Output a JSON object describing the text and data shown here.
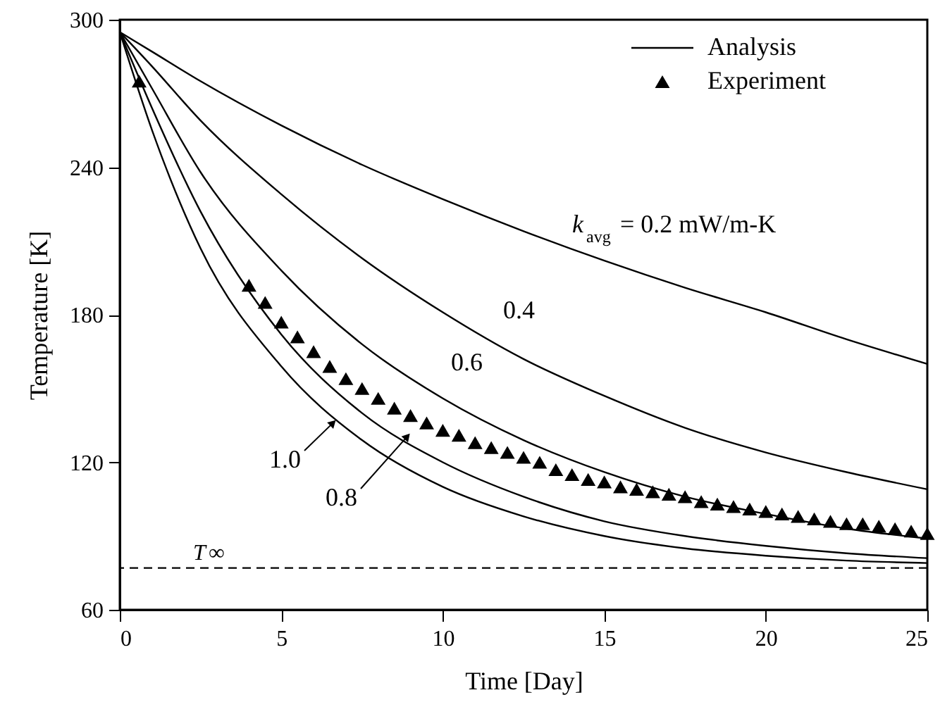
{
  "chart_data": {
    "type": "line",
    "xlabel": "Time [Day]",
    "ylabel": "Temperature [K]",
    "xlim": [
      0,
      25
    ],
    "ylim": [
      60,
      300
    ],
    "xticks": [
      0,
      5,
      10,
      15,
      20,
      25
    ],
    "yticks": [
      60,
      120,
      180,
      240,
      300
    ],
    "grid": false,
    "legend": "top right",
    "line_style": "solid",
    "marker": "none",
    "series": [
      {
        "name": "Analysis",
        "color": "#000000",
        "x": [
          0,
          1,
          2.5,
          5,
          7.5,
          10,
          12.5,
          15,
          17.5,
          20,
          22.5,
          25
        ],
        "values": [
          295,
          287,
          275,
          257,
          241,
          227,
          214,
          202,
          191,
          181,
          170,
          160
        ]
      },
      {
        "color": "#000000",
        "x": [
          0,
          1,
          2.5,
          5,
          7.5,
          10,
          12.5,
          15,
          17.5,
          20,
          22.5,
          25
        ],
        "values": [
          295,
          281,
          259,
          229,
          203,
          181,
          162,
          147,
          134,
          124,
          116,
          109
        ]
      },
      {
        "color": "#000000",
        "x": [
          0,
          1,
          2.5,
          5,
          7.5,
          10,
          12.5,
          15,
          17.5,
          20,
          22.5,
          25
        ],
        "values": [
          295,
          272,
          238,
          198,
          168,
          146,
          129,
          116,
          106,
          99,
          93,
          89
        ]
      },
      {
        "color": "#000000",
        "x": [
          0,
          1,
          2.5,
          5,
          7.5,
          10,
          12.5,
          15,
          17.5,
          20,
          22.5,
          25
        ],
        "values": [
          295,
          264,
          222,
          172,
          140,
          120,
          106,
          96,
          90,
          86,
          83,
          81
        ]
      },
      {
        "color": "#000000",
        "x": [
          0,
          1,
          2.5,
          5,
          7.5,
          10,
          12.5,
          15,
          17.5,
          20,
          22.5,
          25
        ],
        "values": [
          295,
          255,
          207,
          159,
          129,
          110,
          98,
          90,
          85,
          82,
          80,
          79
        ]
      },
      {
        "name": "Experiment",
        "type": "scatter",
        "marker": "triangle",
        "color": "#000000",
        "x": [
          0.6,
          4.0,
          4.5,
          5.0,
          5.5,
          6.0,
          6.5,
          7.0,
          7.5,
          8.0,
          8.5,
          9.0,
          9.5,
          10.0,
          10.5,
          11.0,
          11.5,
          12.0,
          12.5,
          13.0,
          13.5,
          14.0,
          14.5,
          15.0,
          15.5,
          16.0,
          16.5,
          17.0,
          17.5,
          18.0,
          18.5,
          19.0,
          19.5,
          20.0,
          20.5,
          21.0,
          21.5,
          22.0,
          22.5,
          23.0,
          23.5,
          24.0,
          24.5,
          25.0
        ],
        "values": [
          275,
          192,
          185,
          177,
          171,
          165,
          159,
          154,
          150,
          146,
          142,
          139,
          136,
          133,
          131,
          128,
          126,
          124,
          122,
          120,
          117,
          115,
          113,
          112,
          110,
          109,
          108,
          107,
          106,
          104,
          103,
          102,
          101,
          100,
          99,
          98,
          97,
          96,
          95,
          95,
          94,
          93,
          92,
          91
        ]
      }
    ],
    "ref_lines": [
      {
        "axis": "y",
        "value": 77,
        "label": "T∞",
        "line_style": "dashed",
        "color": "#000000"
      }
    ],
    "annotations": [
      "k$_{avg}$ = 0.2 mW/m-K",
      "0.4",
      "0.6",
      {
        "text": "1.0",
        "x": 6.6,
        "y": 136
      },
      {
        "text": "0.8",
        "x": 8.9,
        "y": 130.5
      }
    ]
  }
}
